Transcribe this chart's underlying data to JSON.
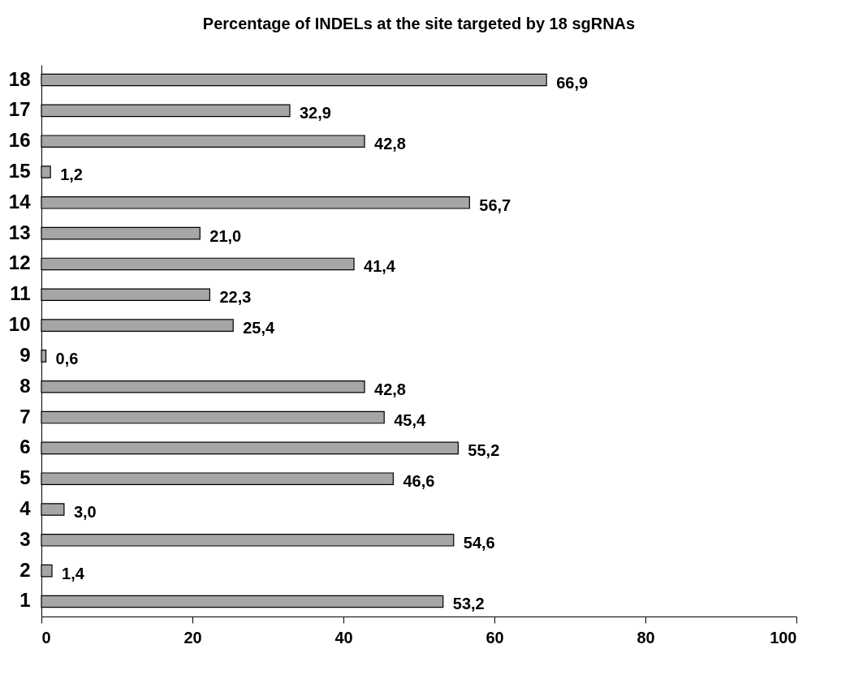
{
  "chart_data": {
    "type": "bar",
    "orientation": "horizontal",
    "title": "Percentage of INDELs at the site targeted by 18 sgRNAs",
    "categories": [
      "18",
      "17",
      "16",
      "15",
      "14",
      "13",
      "12",
      "11",
      "10",
      "9",
      "8",
      "7",
      "6",
      "5",
      "4",
      "3",
      "2",
      "1"
    ],
    "values": [
      66.9,
      32.9,
      42.8,
      1.2,
      56.7,
      21.0,
      41.4,
      22.3,
      25.4,
      0.6,
      42.8,
      45.4,
      55.2,
      46.6,
      3.0,
      54.6,
      1.4,
      53.2
    ],
    "value_labels": [
      "66,9",
      "32,9",
      "42,8",
      "1,2",
      "56,7",
      "21,0",
      "41,4",
      "22,3",
      "25,4",
      "0,6",
      "42,8",
      "45,4",
      "55,2",
      "46,6",
      "3,0",
      "54,6",
      "1,4",
      "53,2"
    ],
    "color": "#a6a6a6",
    "xlim": [
      0,
      100
    ],
    "xticks": [
      0,
      20,
      40,
      60,
      80,
      100
    ],
    "grid": false
  }
}
